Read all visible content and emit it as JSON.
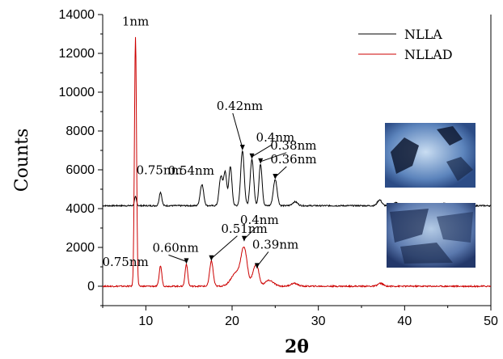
{
  "chart_data": {
    "type": "line",
    "xlabel": "2θ",
    "ylabel": "Counts",
    "xlim": [
      5,
      50
    ],
    "ylim": [
      -1000,
      14000
    ],
    "x_ticks": [
      10,
      20,
      30,
      40,
      50
    ],
    "y_ticks": [
      0,
      2000,
      4000,
      6000,
      8000,
      10000,
      12000,
      14000
    ],
    "grid": false,
    "legend_position": "top-right",
    "series": [
      {
        "name": "NLLA",
        "color": "#000000",
        "baseline": 4150,
        "peaks": [
          [
            8.8,
            450,
            0.12
          ],
          [
            11.7,
            700,
            0.15
          ],
          [
            16.5,
            1100,
            0.2
          ],
          [
            18.7,
            1500,
            0.2
          ],
          [
            19.2,
            1700,
            0.18
          ],
          [
            19.8,
            2000,
            0.18
          ],
          [
            21.2,
            2850,
            0.2
          ],
          [
            22.3,
            2400,
            0.2
          ],
          [
            23.3,
            2150,
            0.18
          ],
          [
            25.0,
            1350,
            0.22
          ],
          [
            27.3,
            200,
            0.3
          ],
          [
            37.1,
            300,
            0.25
          ],
          [
            39.0,
            150,
            0.3
          ],
          [
            44.5,
            120,
            0.3
          ]
        ],
        "annotations": [
          {
            "label": "0.75nm",
            "x": 11.7,
            "y": 4850
          },
          {
            "label": "0.54nm",
            "x": 16.5,
            "y": 5250
          },
          {
            "label": "0.42nm",
            "x": 21.2,
            "y": 7000
          },
          {
            "label": "0.4nm",
            "x": 22.3,
            "y": 6550
          },
          {
            "label": "0.38nm",
            "x": 23.3,
            "y": 6300
          },
          {
            "label": "0.36nm",
            "x": 25.0,
            "y": 5500
          }
        ]
      },
      {
        "name": "NLLAD",
        "color": "#cc0000",
        "baseline": 0,
        "peaks": [
          [
            8.8,
            12850,
            0.12
          ],
          [
            11.7,
            1050,
            0.15
          ],
          [
            14.7,
            1150,
            0.15
          ],
          [
            17.6,
            1300,
            0.2
          ],
          [
            20.5,
            700,
            0.6
          ],
          [
            21.4,
            1800,
            0.35
          ],
          [
            22.5,
            600,
            0.25
          ],
          [
            22.9,
            900,
            0.25
          ],
          [
            24.3,
            300,
            0.5
          ],
          [
            27.2,
            150,
            0.4
          ],
          [
            37.2,
            150,
            0.3
          ]
        ],
        "annotations": [
          {
            "label": "0.75nm",
            "x": 11.7,
            "y": 1050
          },
          {
            "label": "0.60nm",
            "x": 14.7,
            "y": 1150
          },
          {
            "label": "0.51nm",
            "x": 17.6,
            "y": 1300
          },
          {
            "label": "0.4nm",
            "x": 21.4,
            "y": 2300
          },
          {
            "label": "0.39nm",
            "x": 22.9,
            "y": 900
          }
        ]
      }
    ],
    "top_annotation": {
      "label": "1nm",
      "x": 8.8,
      "y": 12850
    }
  }
}
